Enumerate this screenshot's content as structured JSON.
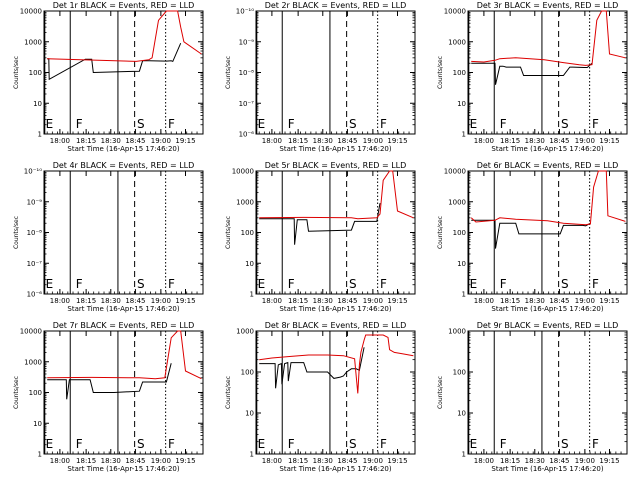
{
  "colors": {
    "events": "#000000",
    "lld": "#dd0000",
    "background": "#ffffff"
  },
  "chart_data": [
    {
      "type": "line",
      "title": "Det 1r BLACK = Events, RED = LLD",
      "xlabel": "Start Time (16-Apr-15 17:46:20)",
      "ylabel": "Counts/sec",
      "xticks": [
        "18:00",
        "18:15",
        "18:30",
        "18:45",
        "19:00",
        "19:15"
      ],
      "yticks": [
        "1",
        "10",
        "100",
        "1000",
        "10000"
      ],
      "yscale": "log",
      "markers": [
        "E",
        "F",
        "S",
        "F"
      ],
      "series": [
        {
          "color": "events",
          "x": [
            0.02,
            0.03,
            0.033,
            0.26,
            0.3,
            0.31,
            0.6,
            0.62,
            0.66,
            0.77,
            0.8,
            0.81,
            0.86
          ],
          "y": [
            280,
            280,
            60,
            270,
            270,
            100,
            110,
            240,
            240,
            235,
            240,
            230,
            900
          ]
        },
        {
          "color": "lld",
          "x": [
            0.02,
            0.58,
            0.66,
            0.68,
            0.72,
            0.77,
            0.8,
            0.84,
            0.86,
            0.88,
            0.99
          ],
          "y": [
            280,
            230,
            260,
            300,
            5000,
            15000,
            15000,
            15000,
            3000,
            1000,
            400
          ]
        }
      ]
    },
    {
      "type": "line",
      "title": "Det 2r BLACK = Events, RED = LLD",
      "xlabel": "Start Time (16-Apr-15 17:46:20)",
      "ylabel": "Counts/sec",
      "xticks": [
        "18:00",
        "18:15",
        "18:30",
        "18:45",
        "19:00",
        "19:15"
      ],
      "yticks": [
        "10⁻⁶",
        "10⁻⁷",
        "10⁻⁸",
        "10⁻⁹",
        "10⁻¹⁰"
      ],
      "yscale": "log",
      "markers": [
        "E",
        "F",
        "S",
        "F"
      ],
      "series": []
    },
    {
      "type": "line",
      "title": "Det 3r BLACK = Events, RED = LLD",
      "xlabel": "Start Time (16-Apr-15 17:46:20)",
      "ylabel": "Counts/sec",
      "xticks": [
        "18:00",
        "18:15",
        "18:30",
        "18:45",
        "19:00",
        "19:15"
      ],
      "yticks": [
        "1",
        "10",
        "100",
        "1000",
        "10000"
      ],
      "yscale": "log",
      "markers": [
        "E",
        "F",
        "S",
        "F"
      ],
      "series": [
        {
          "color": "events",
          "x": [
            0.02,
            0.17,
            0.173,
            0.2,
            0.22,
            0.24,
            0.33,
            0.35,
            0.6,
            0.64,
            0.66,
            0.73,
            0.75,
            0.78
          ],
          "y": [
            200,
            200,
            40,
            160,
            160,
            150,
            150,
            80,
            80,
            150,
            150,
            145,
            145,
            200
          ]
        },
        {
          "color": "lld",
          "x": [
            0.02,
            0.1,
            0.17,
            0.2,
            0.3,
            0.48,
            0.6,
            0.7,
            0.74,
            0.78,
            0.81,
            0.84,
            0.87,
            0.89,
            0.99
          ],
          "y": [
            230,
            220,
            250,
            280,
            300,
            260,
            210,
            180,
            170,
            180,
            5000,
            14000,
            14000,
            400,
            300
          ]
        }
      ]
    },
    {
      "type": "line",
      "title": "Det 4r BLACK = Events, RED = LLD",
      "xlabel": "Start Time (16-Apr-15 17:46:20)",
      "ylabel": "Counts/sec",
      "xticks": [
        "18:00",
        "18:15",
        "18:30",
        "18:45",
        "19:00",
        "19:15"
      ],
      "yticks": [
        "10⁻⁶",
        "10⁻⁷",
        "10⁻⁸",
        "10⁻⁹",
        "10⁻¹⁰"
      ],
      "yscale": "log",
      "markers": [
        "E",
        "F",
        "S",
        "F"
      ],
      "series": []
    },
    {
      "type": "line",
      "title": "Det 5r BLACK = Events, RED = LLD",
      "xlabel": "Start Time (16-Apr-15 17:46:20)",
      "ylabel": "Counts/sec",
      "xticks": [
        "18:00",
        "18:15",
        "18:30",
        "18:45",
        "19:00",
        "19:15"
      ],
      "yticks": [
        "1",
        "10",
        "100",
        "1000",
        "10000"
      ],
      "yscale": "log",
      "markers": [
        "E",
        "F",
        "S",
        "F"
      ],
      "series": [
        {
          "color": "events",
          "x": [
            0.02,
            0.24,
            0.243,
            0.26,
            0.32,
            0.33,
            0.6,
            0.62,
            0.76,
            0.78
          ],
          "y": [
            280,
            280,
            40,
            260,
            260,
            110,
            120,
            230,
            230,
            900
          ]
        },
        {
          "color": "lld",
          "x": [
            0.02,
            0.3,
            0.6,
            0.64,
            0.76,
            0.78,
            0.8,
            0.84,
            0.86,
            0.89,
            0.99
          ],
          "y": [
            300,
            310,
            300,
            280,
            300,
            400,
            5000,
            15000,
            15000,
            500,
            300
          ]
        }
      ]
    },
    {
      "type": "line",
      "title": "Det 6r BLACK = Events, RED = LLD",
      "xlabel": "Start Time (16-Apr-15 17:46:20)",
      "ylabel": "Counts/sec",
      "xticks": [
        "18:00",
        "18:15",
        "18:30",
        "18:45",
        "19:00",
        "19:15"
      ],
      "yticks": [
        "1",
        "10",
        "100",
        "1000",
        "10000"
      ],
      "yscale": "log",
      "markers": [
        "E",
        "F",
        "S",
        "F"
      ],
      "series": [
        {
          "color": "events",
          "x": [
            0.02,
            0.17,
            0.173,
            0.2,
            0.3,
            0.32,
            0.34,
            0.58,
            0.6,
            0.72,
            0.74,
            0.77
          ],
          "y": [
            250,
            250,
            30,
            200,
            200,
            90,
            90,
            90,
            170,
            170,
            165,
            200
          ]
        },
        {
          "color": "lld",
          "x": [
            0.02,
            0.05,
            0.17,
            0.2,
            0.3,
            0.5,
            0.6,
            0.74,
            0.77,
            0.79,
            0.82,
            0.85,
            0.87,
            0.88,
            0.99
          ],
          "y": [
            300,
            220,
            250,
            300,
            270,
            240,
            200,
            180,
            190,
            3000,
            12000,
            12000,
            12000,
            350,
            230
          ]
        }
      ]
    },
    {
      "type": "line",
      "title": "Det 7r BLACK = Events, RED = LLD",
      "xlabel": "Start Time (16-Apr-15 17:46:20)",
      "ylabel": "Counts/sec",
      "xticks": [
        "18:00",
        "18:15",
        "18:30",
        "18:45",
        "19:00",
        "19:15"
      ],
      "yticks": [
        "1",
        "10",
        "100",
        "1000",
        "10000"
      ],
      "yscale": "log",
      "markers": [
        "E",
        "F",
        "S",
        "F"
      ],
      "series": [
        {
          "color": "events",
          "x": [
            0.02,
            0.14,
            0.143,
            0.16,
            0.29,
            0.31,
            0.44,
            0.6,
            0.62,
            0.77,
            0.8
          ],
          "y": [
            260,
            260,
            60,
            260,
            260,
            100,
            100,
            110,
            220,
            220,
            900
          ]
        },
        {
          "color": "lld",
          "x": [
            0.02,
            0.3,
            0.6,
            0.7,
            0.76,
            0.8,
            0.84,
            0.86,
            0.89,
            0.99
          ],
          "y": [
            300,
            310,
            300,
            280,
            300,
            6000,
            15000,
            15000,
            500,
            280
          ]
        }
      ]
    },
    {
      "type": "line",
      "title": "Det 8r BLACK = Events, RED = LLD",
      "xlabel": "Start Time (16-Apr-15 17:46:20)",
      "ylabel": "Counts/sec",
      "xticks": [
        "18:00",
        "18:15",
        "18:30",
        "18:45",
        "19:00",
        "19:15"
      ],
      "yticks": [
        "1",
        "10",
        "100",
        "1000"
      ],
      "yscale": "log",
      "markers": [
        "E",
        "F",
        "S",
        "F"
      ],
      "series": [
        {
          "color": "events",
          "x": [
            0.02,
            0.12,
            0.123,
            0.14,
            0.16,
            0.163,
            0.18,
            0.2,
            0.203,
            0.22,
            0.3,
            0.32,
            0.45,
            0.49,
            0.53,
            0.55,
            0.57,
            0.6,
            0.63,
            0.65,
            0.68
          ],
          "y": [
            160,
            160,
            40,
            150,
            160,
            50,
            160,
            170,
            60,
            170,
            170,
            100,
            100,
            70,
            75,
            80,
            100,
            120,
            120,
            110,
            400
          ]
        },
        {
          "color": "lld",
          "x": [
            0.02,
            0.1,
            0.22,
            0.33,
            0.45,
            0.55,
            0.62,
            0.64,
            0.65,
            0.66,
            0.68,
            0.69,
            0.72,
            0.77,
            0.8,
            0.83,
            0.84,
            0.87,
            0.92,
            0.99
          ],
          "y": [
            200,
            220,
            240,
            260,
            260,
            250,
            210,
            30,
            150,
            300,
            600,
            800,
            800,
            800,
            800,
            700,
            350,
            300,
            280,
            250
          ]
        }
      ]
    },
    {
      "type": "line",
      "title": "Det 9r BLACK = Events, RED = LLD",
      "xlabel": "Start Time (16-Apr-15 17:46:20)",
      "ylabel": "Counts/sec",
      "xticks": [
        "18:00",
        "18:15",
        "18:30",
        "18:45",
        "19:00",
        "19:15"
      ],
      "yticks": [
        "1",
        "10",
        "100",
        "1000"
      ],
      "yscale": "log",
      "markers": [
        "E",
        "F",
        "S",
        "F"
      ],
      "series": []
    }
  ]
}
